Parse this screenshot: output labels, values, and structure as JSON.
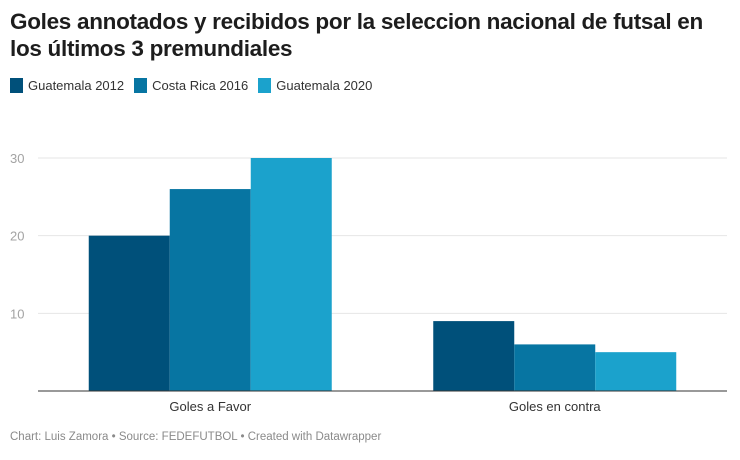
{
  "chart_data": {
    "type": "bar",
    "title": "Goles annotados y recibidos por la seleccion nacional de futsal en los últimos 3 premundiales",
    "categories": [
      "Goles a Favor",
      "Goles en contra"
    ],
    "series": [
      {
        "name": "Guatemala 2012",
        "color": "#00507a",
        "values": [
          20,
          9
        ]
      },
      {
        "name": "Costa Rica 2016",
        "color": "#0775a2",
        "values": [
          26,
          6
        ]
      },
      {
        "name": "Guatemala 2020",
        "color": "#1ba2cc",
        "values": [
          30,
          5
        ]
      }
    ],
    "xlabel": "",
    "ylabel": "",
    "ylim": [
      0,
      30
    ],
    "yticks": [
      10,
      20,
      30
    ],
    "ytick_labels": [
      "10",
      "20",
      "30"
    ],
    "grid": true,
    "legend": "top-left"
  },
  "footer": {
    "text": "Chart: Luis Zamora • Source: FEDEFUTBOL • Created with Datawrapper"
  }
}
